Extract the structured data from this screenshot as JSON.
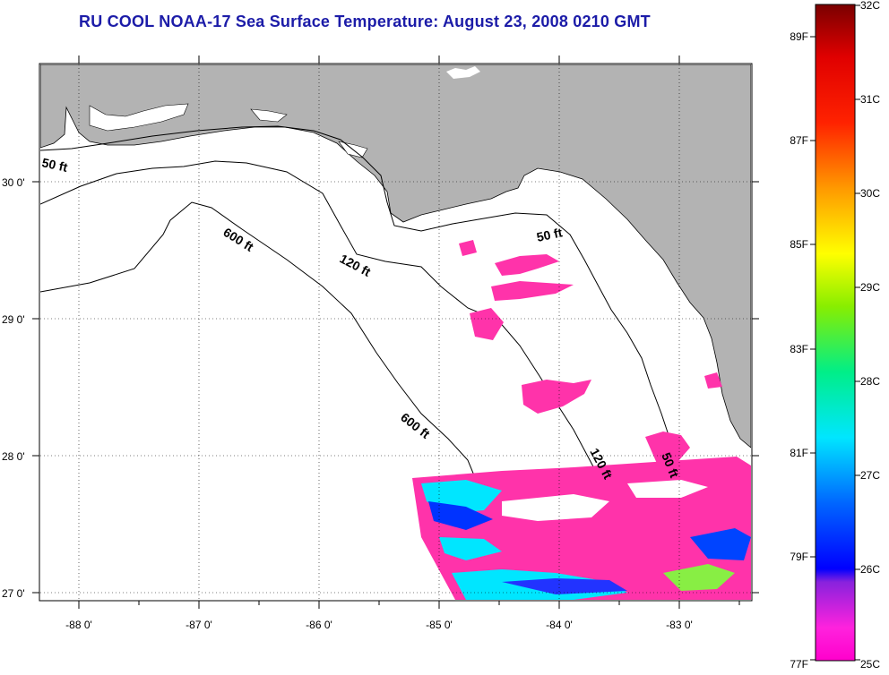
{
  "title": "RU COOL  NOAA-17  Sea Surface Temperature:  August 23, 2008 0210 GMT",
  "map": {
    "lat_labels": [
      "30 0'",
      "29 0'",
      "28 0'",
      "27 0'"
    ],
    "lon_labels": [
      "-88 0'",
      "-87 0'",
      "-86 0'",
      "-85 0'",
      "-84 0'",
      "-83 0'"
    ],
    "depth_labels": [
      "50 ft",
      "600 ft",
      "120 ft",
      "50 ft",
      "600 ft",
      "120 ft",
      "50 ft"
    ]
  },
  "colorbar": {
    "celsius": [
      "32C",
      "31C",
      "30C",
      "29C",
      "28C",
      "27C",
      "26C",
      "25C"
    ],
    "fahrenheit": [
      "89F",
      "87F",
      "85F",
      "83F",
      "81F",
      "79F",
      "77F"
    ]
  },
  "colors": {
    "land": "#b3b3b3",
    "title": "#1c1ca8",
    "cool": "#ff33aa"
  }
}
